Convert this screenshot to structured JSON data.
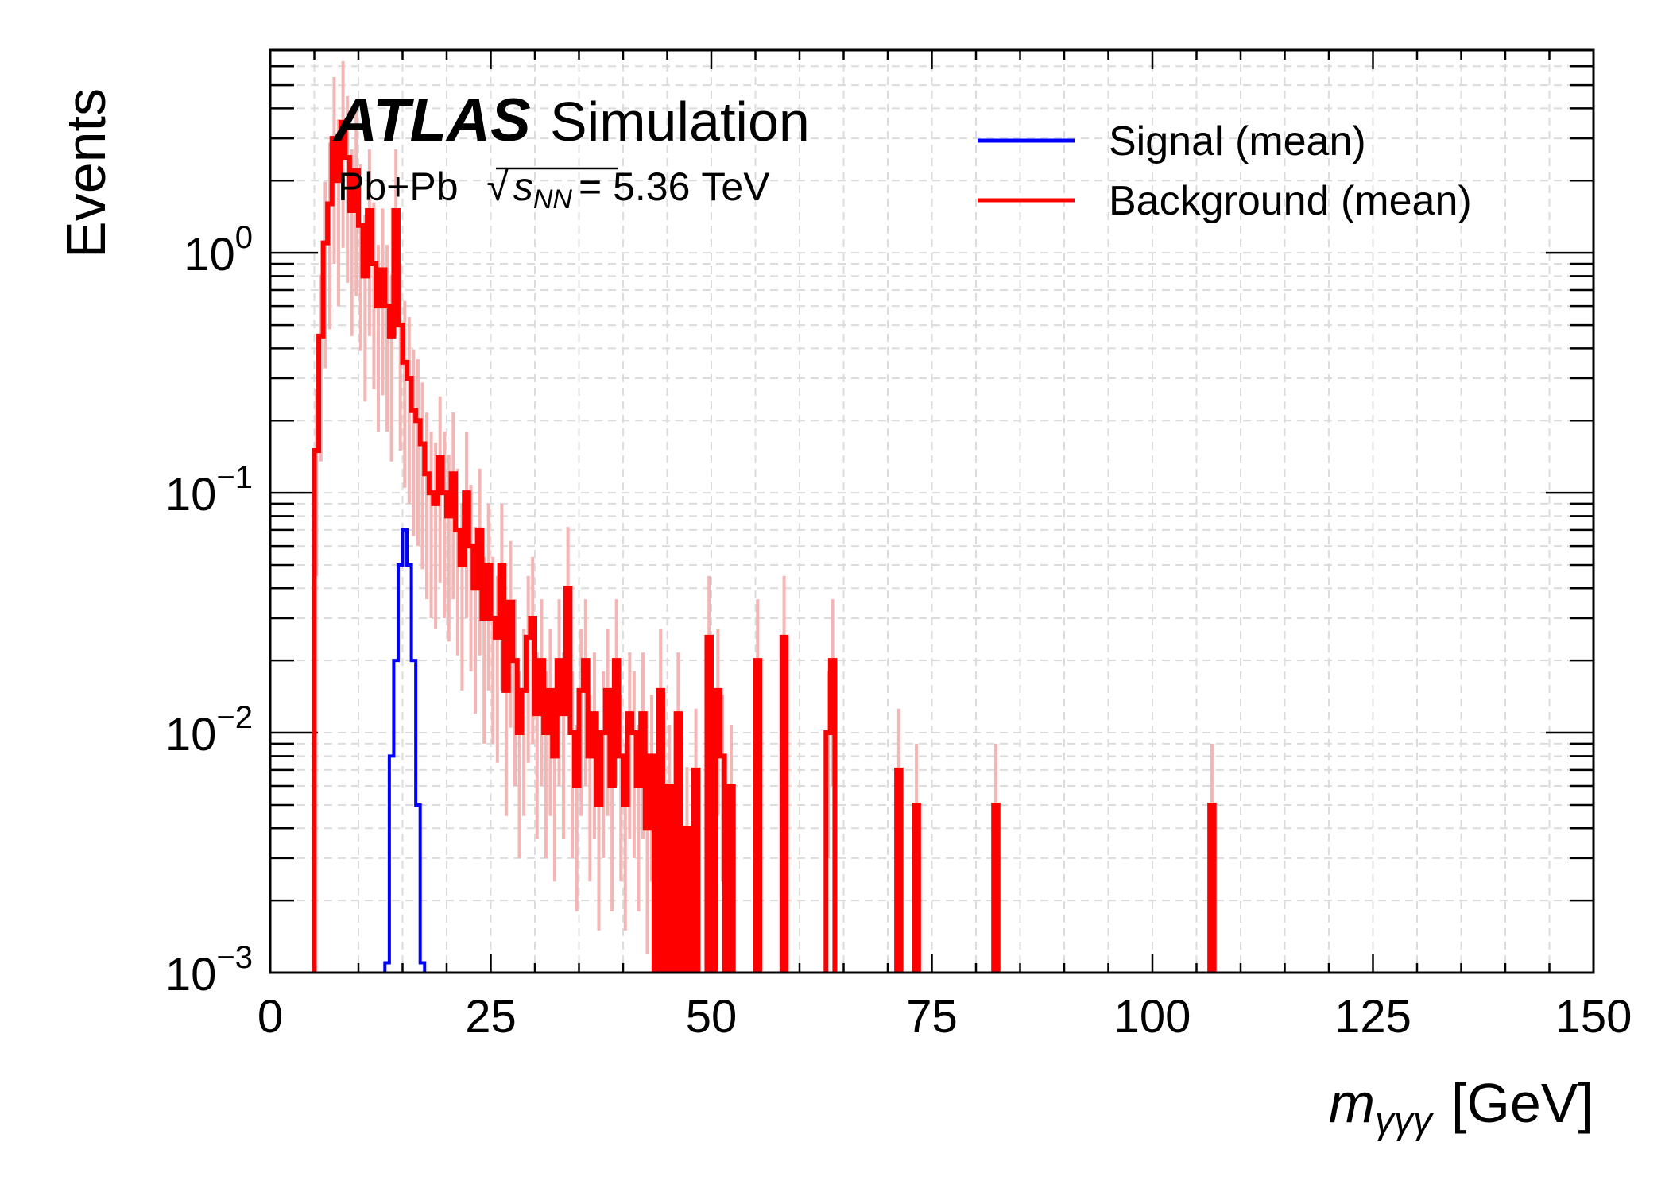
{
  "chart_data": {
    "type": "histogram",
    "title": "",
    "xlabel": {
      "main": "m",
      "sub": "γγγ",
      "unit": "[GeV]"
    },
    "ylabel": "Events",
    "xlim": [
      0,
      150
    ],
    "ylim": [
      0.001,
      7
    ],
    "yscale": "log",
    "grid": true,
    "legend_position": "top-right",
    "x_ticks": [
      0,
      25,
      50,
      75,
      100,
      125,
      150
    ],
    "x_tick_labels": [
      "0",
      "25",
      "50",
      "75",
      "100",
      "125",
      "150"
    ],
    "y_ticks": [
      0.001,
      0.01,
      0.1,
      1
    ],
    "y_tick_labels": [
      {
        "base": "10",
        "exp": "−3"
      },
      {
        "base": "10",
        "exp": "−2"
      },
      {
        "base": "10",
        "exp": "−1"
      },
      {
        "base": "10",
        "exp": "0"
      }
    ],
    "annotation": {
      "experiment": "ATLAS",
      "status": "Simulation",
      "system": "Pb+Pb",
      "energy_symbol": "s",
      "energy_sub": "NN",
      "energy_value": "= 5.36",
      "energy_unit": "TeV"
    },
    "series": [
      {
        "name": "Signal (mean)",
        "color": "#0000ff",
        "bin_width": 0.5,
        "bins": [
          [
            13.0,
            0.0011
          ],
          [
            13.5,
            0.008
          ],
          [
            14.0,
            0.02
          ],
          [
            14.5,
            0.05
          ],
          [
            15.0,
            0.07
          ],
          [
            15.5,
            0.05
          ],
          [
            16.0,
            0.02
          ],
          [
            16.5,
            0.005
          ],
          [
            17.0,
            0.0011
          ]
        ]
      },
      {
        "name": "Background (mean)",
        "color": "#ff0000",
        "error_color": "#f4b5b5",
        "bin_width": 0.5,
        "bins": [
          [
            5.0,
            0.15
          ],
          [
            5.5,
            0.45
          ],
          [
            6.0,
            1.1
          ],
          [
            6.5,
            1.6
          ],
          [
            7.0,
            3.0
          ],
          [
            7.5,
            2.0
          ],
          [
            8.0,
            3.5
          ],
          [
            8.5,
            2.5
          ],
          [
            9.0,
            1.5
          ],
          [
            9.5,
            2.2
          ],
          [
            10.0,
            1.3
          ],
          [
            10.5,
            0.8
          ],
          [
            11.0,
            1.5
          ],
          [
            11.5,
            0.9
          ],
          [
            12.0,
            0.6
          ],
          [
            12.5,
            0.85
          ],
          [
            13.0,
            0.6
          ],
          [
            13.5,
            0.45
          ],
          [
            14.0,
            1.5
          ],
          [
            14.5,
            0.5
          ],
          [
            15.0,
            0.35
          ],
          [
            15.5,
            0.3
          ],
          [
            16.0,
            0.22
          ],
          [
            16.5,
            0.2
          ],
          [
            17.0,
            0.16
          ],
          [
            17.5,
            0.12
          ],
          [
            18.0,
            0.1
          ],
          [
            18.5,
            0.09
          ],
          [
            19.0,
            0.14
          ],
          [
            19.5,
            0.1
          ],
          [
            20.0,
            0.08
          ],
          [
            20.5,
            0.12
          ],
          [
            21.0,
            0.07
          ],
          [
            21.5,
            0.05
          ],
          [
            22.0,
            0.1
          ],
          [
            22.5,
            0.06
          ],
          [
            23.0,
            0.04
          ],
          [
            23.5,
            0.07
          ],
          [
            24.0,
            0.03
          ],
          [
            24.5,
            0.05
          ],
          [
            25.0,
            0.03
          ],
          [
            25.5,
            0.025
          ],
          [
            26.0,
            0.05
          ],
          [
            26.5,
            0.015
          ],
          [
            27.0,
            0.035
          ],
          [
            27.5,
            0.02
          ],
          [
            28.0,
            0.01
          ],
          [
            28.5,
            0.015
          ],
          [
            29.0,
            0.025
          ],
          [
            29.5,
            0.03
          ],
          [
            30.0,
            0.012
          ],
          [
            30.5,
            0.02
          ],
          [
            31.0,
            0.01
          ],
          [
            31.5,
            0.015
          ],
          [
            32.0,
            0.008
          ],
          [
            32.5,
            0.02
          ],
          [
            33.0,
            0.012
          ],
          [
            33.5,
            0.04
          ],
          [
            34.0,
            0.01
          ],
          [
            34.5,
            0.006
          ],
          [
            35.0,
            0.015
          ],
          [
            35.5,
            0.02
          ],
          [
            36.0,
            0.008
          ],
          [
            36.5,
            0.012
          ],
          [
            37.0,
            0.005
          ],
          [
            37.5,
            0.01
          ],
          [
            38.0,
            0.015
          ],
          [
            38.5,
            0.006
          ],
          [
            39.0,
            0.02
          ],
          [
            39.5,
            0.008
          ],
          [
            40.0,
            0.005
          ],
          [
            40.5,
            0.012
          ],
          [
            41.0,
            0.01
          ],
          [
            41.5,
            0.006
          ],
          [
            42.0,
            0.012
          ],
          [
            42.5,
            0.004
          ],
          [
            43.0,
            0.008
          ],
          [
            44.0,
            0.015
          ],
          [
            45.0,
            0.006
          ],
          [
            46.0,
            0.012
          ],
          [
            47.0,
            0.004
          ],
          [
            48.0,
            0.007
          ],
          [
            49.5,
            0.025
          ],
          [
            50.5,
            0.015
          ],
          [
            51.0,
            0.008
          ],
          [
            52.0,
            0.006
          ],
          [
            55.0,
            0.02
          ],
          [
            58.0,
            0.025
          ],
          [
            63.0,
            0.01
          ],
          [
            63.5,
            0.02
          ],
          [
            71.0,
            0.007
          ],
          [
            73.0,
            0.005
          ],
          [
            82.0,
            0.005
          ],
          [
            106.5,
            0.005
          ]
        ]
      }
    ]
  }
}
